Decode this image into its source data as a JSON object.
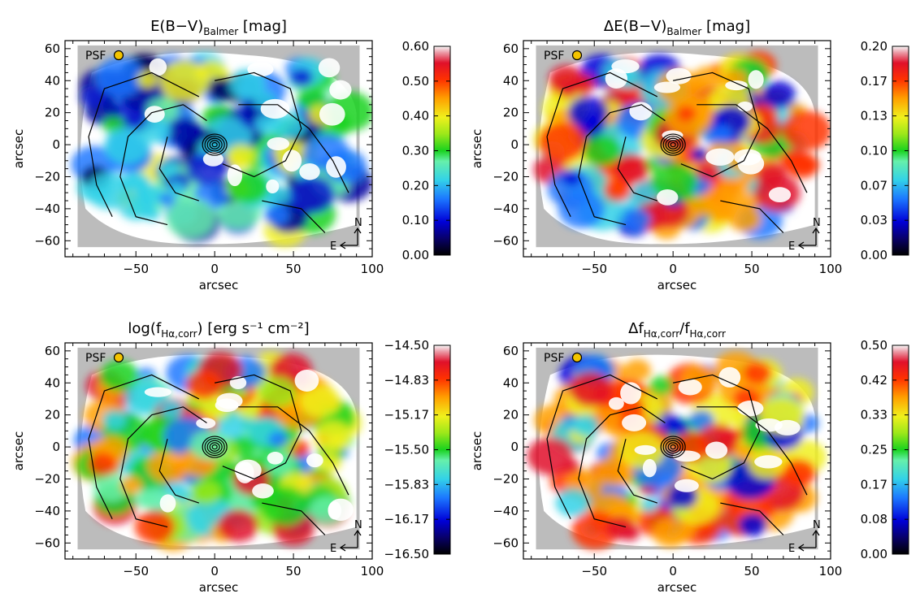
{
  "figure": {
    "panels": [
      {
        "id": "ebv",
        "title": "E(B−V)",
        "title_sub": "Balmer",
        "title_tail": " [mag]",
        "colorbar_ticks": [
          "0.60",
          "0.50",
          "0.40",
          "0.30",
          "0.20",
          "0.10",
          "0.00"
        ],
        "show_xlabel": true
      },
      {
        "id": "debv",
        "title": "ΔE(B−V)",
        "title_sub": "Balmer",
        "title_tail": " [mag]",
        "colorbar_ticks": [
          "0.20",
          "0.17",
          "0.13",
          "0.10",
          "0.07",
          "0.03",
          "0.00"
        ],
        "show_xlabel": true
      },
      {
        "id": "logf",
        "title": "log(f",
        "title_sub": "Hα,corr",
        "title_tail": ") [erg s⁻¹ cm⁻²]",
        "colorbar_ticks": [
          "−14.50",
          "−14.83",
          "−15.17",
          "−15.50",
          "−15.83",
          "−16.17",
          "−16.50"
        ],
        "show_xlabel": true
      },
      {
        "id": "dfrel",
        "title": "Δf",
        "title_sub": "Hα,corr",
        "title_tail": "/f",
        "title_sub2": "Hα,corr",
        "colorbar_ticks": [
          "0.50",
          "0.42",
          "0.33",
          "0.25",
          "0.17",
          "0.08",
          "0.00"
        ],
        "show_xlabel": true
      }
    ],
    "psf_label": "PSF",
    "compass_n": "N",
    "compass_e": "E",
    "axis_label": "arcsec"
  },
  "chart_data": [
    {
      "type": "heatmap",
      "title": "E(B−V)_Balmer [mag]",
      "xlabel": "arcsec",
      "ylabel": "arcsec",
      "xlim": [
        -95,
        100
      ],
      "ylim": [
        -70,
        65
      ],
      "xticks": [
        "−50",
        "0",
        "50",
        "100"
      ],
      "yticks": [
        "60",
        "40",
        "20",
        "0",
        "−20",
        "−40",
        "−60"
      ],
      "colorbar_range": [
        0.0,
        0.6
      ],
      "colorbar_ticks": [
        0.0,
        0.1,
        0.2,
        0.3,
        0.4,
        0.5,
        0.6
      ]
    },
    {
      "type": "heatmap",
      "title": "ΔE(B−V)_Balmer [mag]",
      "xlabel": "arcsec",
      "ylabel": "arcsec",
      "xlim": [
        -95,
        100
      ],
      "ylim": [
        -70,
        65
      ],
      "xticks": [
        "−50",
        "0",
        "50",
        "100"
      ],
      "yticks": [
        "60",
        "40",
        "20",
        "0",
        "−20",
        "−40",
        "−60"
      ],
      "colorbar_range": [
        0.0,
        0.2
      ],
      "colorbar_ticks": [
        0.0,
        0.03,
        0.07,
        0.1,
        0.13,
        0.17,
        0.2
      ]
    },
    {
      "type": "heatmap",
      "title": "log(f_Hα,corr) [erg s^-1 cm^-2]",
      "xlabel": "arcsec",
      "ylabel": "arcsec",
      "xlim": [
        -95,
        100
      ],
      "ylim": [
        -70,
        65
      ],
      "xticks": [
        "−50",
        "0",
        "50",
        "100"
      ],
      "yticks": [
        "60",
        "40",
        "20",
        "0",
        "−20",
        "−40",
        "−60"
      ],
      "colorbar_range": [
        -16.5,
        -14.5
      ],
      "colorbar_ticks": [
        -16.5,
        -16.17,
        -15.83,
        -15.5,
        -15.17,
        -14.83,
        -14.5
      ]
    },
    {
      "type": "heatmap",
      "title": "Δf_Hα,corr/f_Hα,corr",
      "xlabel": "arcsec",
      "ylabel": "arcsec",
      "xlim": [
        -95,
        100
      ],
      "ylim": [
        -70,
        65
      ],
      "xticks": [
        "−50",
        "0",
        "50",
        "100"
      ],
      "yticks": [
        "60",
        "40",
        "20",
        "0",
        "−20",
        "−40",
        "−60"
      ],
      "colorbar_range": [
        0.0,
        0.5
      ],
      "colorbar_ticks": [
        0.0,
        0.08,
        0.17,
        0.25,
        0.33,
        0.42,
        0.5
      ]
    }
  ]
}
